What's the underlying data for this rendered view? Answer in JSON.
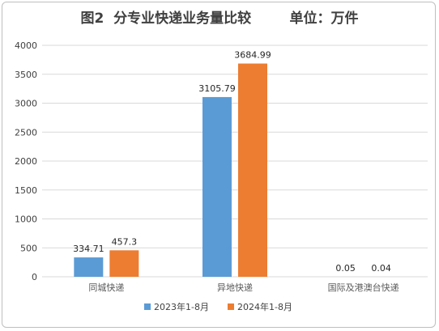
{
  "chart_data": {
    "type": "bar",
    "title": "图2  分专业快递业务量比较        单位：万件",
    "categories": [
      "同城快递",
      "异地快递",
      "国际及港澳台快递"
    ],
    "series": [
      {
        "name": "2023年1-8月",
        "values": [
          334.71,
          3105.79,
          0.05
        ],
        "labels": [
          "334.71",
          "3105.79",
          "0.05"
        ],
        "color": "#5b9bd5"
      },
      {
        "name": "2024年1-8月",
        "values": [
          457.3,
          3684.99,
          0.04
        ],
        "labels": [
          "457.3",
          "3684.99",
          "0.04"
        ],
        "color": "#ed7d31"
      }
    ],
    "yticks": [
      "0",
      "500",
      "1000",
      "1500",
      "2000",
      "2500",
      "3000",
      "3500",
      "4000"
    ],
    "ylim": [
      0,
      4000
    ],
    "grid": true,
    "legend_position": "bottom"
  }
}
